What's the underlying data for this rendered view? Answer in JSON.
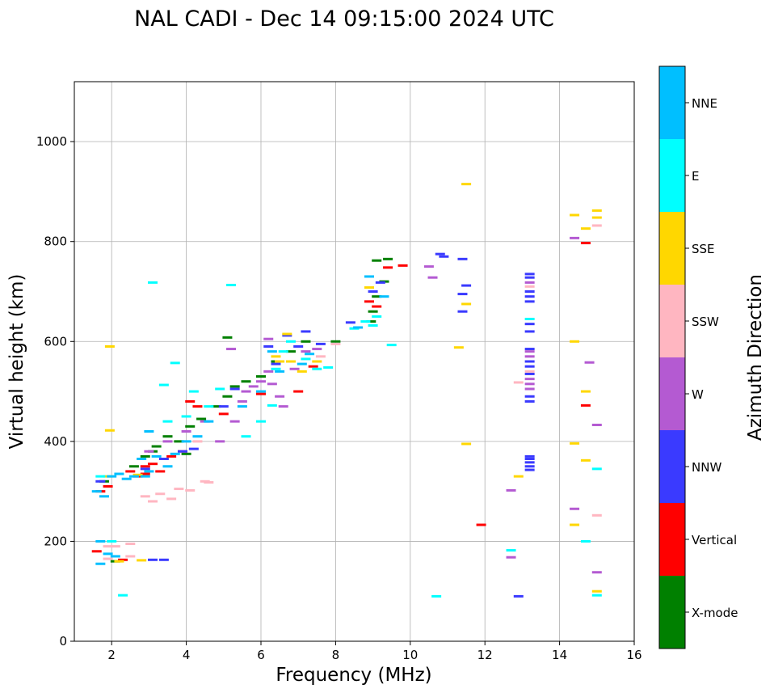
{
  "chart_data": {
    "type": "scatter",
    "title": "NAL CADI - Dec 14 09:15:00 2024 UTC",
    "xlabel": "Frequency (MHz)",
    "ylabel": "Virtual height (km)",
    "xlim": [
      1,
      16
    ],
    "ylim": [
      0,
      1120
    ],
    "xticks": [
      "2",
      "4",
      "6",
      "8",
      "10",
      "12",
      "14",
      "16"
    ],
    "yticks": [
      "0",
      "200",
      "400",
      "600",
      "800",
      "1000"
    ],
    "grid": true,
    "colorbar": {
      "label": "Azimuth Direction",
      "categories": [
        {
          "name": "X-mode",
          "color": "#008000"
        },
        {
          "name": "Vertical",
          "color": "#ff0000"
        },
        {
          "name": "NNW",
          "color": "#3a3aff"
        },
        {
          "name": "W",
          "color": "#b45ad2"
        },
        {
          "name": "SSW",
          "color": "#ffb6c1"
        },
        {
          "name": "SSE",
          "color": "#ffd700"
        },
        {
          "name": "E",
          "color": "#00ffff"
        },
        {
          "name": "NNE",
          "color": "#00bfff"
        }
      ]
    },
    "series": [
      {
        "name": "X-mode",
        "points": [
          [
            1.8,
            320
          ],
          [
            2.6,
            350
          ],
          [
            2.9,
            370
          ],
          [
            3.2,
            390
          ],
          [
            3.5,
            410
          ],
          [
            3.8,
            400
          ],
          [
            4.1,
            430
          ],
          [
            4.4,
            445
          ],
          [
            4.8,
            470
          ],
          [
            5.1,
            490
          ],
          [
            5.3,
            510
          ],
          [
            5.6,
            520
          ],
          [
            6.0,
            530
          ],
          [
            6.4,
            560
          ],
          [
            6.8,
            580
          ],
          [
            7.2,
            600
          ],
          [
            8.0,
            600
          ],
          [
            8.95,
            640
          ],
          [
            9.0,
            660
          ],
          [
            9.1,
            690
          ],
          [
            9.3,
            720
          ],
          [
            9.4,
            765
          ],
          [
            9.1,
            762
          ],
          [
            2.1,
            160
          ],
          [
            3.1,
            380
          ],
          [
            4.0,
            375
          ],
          [
            5.1,
            608
          ]
        ]
      },
      {
        "name": "Vertical",
        "points": [
          [
            1.7,
            300
          ],
          [
            1.9,
            310
          ],
          [
            2.5,
            340
          ],
          [
            2.7,
            330
          ],
          [
            2.9,
            350
          ],
          [
            3.1,
            355
          ],
          [
            3.3,
            340
          ],
          [
            3.6,
            370
          ],
          [
            3.9,
            380
          ],
          [
            4.1,
            480
          ],
          [
            4.3,
            470
          ],
          [
            5.0,
            455
          ],
          [
            6.0,
            495
          ],
          [
            7.0,
            500
          ],
          [
            7.4,
            550
          ],
          [
            8.9,
            680
          ],
          [
            9.1,
            670
          ],
          [
            9.4,
            748
          ],
          [
            9.8,
            752
          ],
          [
            11.9,
            233
          ],
          [
            14.7,
            472
          ],
          [
            14.7,
            797
          ],
          [
            2.3,
            163
          ],
          [
            1.6,
            180
          ],
          [
            2.9,
            335
          ]
        ]
      },
      {
        "name": "NNW",
        "points": [
          [
            1.7,
            320
          ],
          [
            2.9,
            345
          ],
          [
            3.4,
            365
          ],
          [
            3.9,
            380
          ],
          [
            4.2,
            385
          ],
          [
            5.0,
            470
          ],
          [
            5.3,
            505
          ],
          [
            6.2,
            590
          ],
          [
            6.4,
            555
          ],
          [
            7.0,
            590
          ],
          [
            7.6,
            595
          ],
          [
            8.4,
            638
          ],
          [
            9.0,
            700
          ],
          [
            9.2,
            718
          ],
          [
            10.8,
            775
          ],
          [
            10.9,
            770
          ],
          [
            11.4,
            695
          ],
          [
            11.4,
            765
          ],
          [
            11.5,
            712
          ],
          [
            11.4,
            660
          ],
          [
            13.2,
            735
          ],
          [
            13.2,
            728
          ],
          [
            13.2,
            700
          ],
          [
            13.2,
            690
          ],
          [
            13.2,
            680
          ],
          [
            13.2,
            635
          ],
          [
            13.2,
            620
          ],
          [
            13.2,
            585
          ],
          [
            13.2,
            560
          ],
          [
            13.2,
            550
          ],
          [
            13.2,
            535
          ],
          [
            13.2,
            490
          ],
          [
            13.2,
            480
          ],
          [
            13.2,
            370
          ],
          [
            13.2,
            365
          ],
          [
            13.2,
            358
          ],
          [
            13.2,
            350
          ],
          [
            13.2,
            343
          ],
          [
            12.9,
            90
          ],
          [
            3.1,
            163
          ],
          [
            3.4,
            163
          ],
          [
            7.2,
            620
          ],
          [
            6.7,
            612
          ]
        ]
      },
      {
        "name": "W",
        "points": [
          [
            3.0,
            380
          ],
          [
            3.5,
            400
          ],
          [
            4.0,
            420
          ],
          [
            4.5,
            440
          ],
          [
            4.9,
            400
          ],
          [
            5.3,
            440
          ],
          [
            5.5,
            480
          ],
          [
            5.6,
            500
          ],
          [
            5.8,
            510
          ],
          [
            6.0,
            520
          ],
          [
            6.2,
            540
          ],
          [
            6.3,
            515
          ],
          [
            6.2,
            605
          ],
          [
            6.5,
            490
          ],
          [
            6.6,
            470
          ],
          [
            6.9,
            545
          ],
          [
            7.2,
            580
          ],
          [
            7.5,
            585
          ],
          [
            10.5,
            750
          ],
          [
            10.6,
            728
          ],
          [
            12.7,
            302
          ],
          [
            12.7,
            168
          ],
          [
            13.2,
            718
          ],
          [
            13.2,
            580
          ],
          [
            13.2,
            570
          ],
          [
            13.2,
            525
          ],
          [
            13.2,
            515
          ],
          [
            13.2,
            505
          ],
          [
            14.4,
            265
          ],
          [
            14.4,
            807
          ],
          [
            14.8,
            558
          ],
          [
            15.0,
            433
          ],
          [
            15.0,
            138
          ],
          [
            5.2,
            585
          ]
        ]
      },
      {
        "name": "SSW",
        "points": [
          [
            1.9,
            190
          ],
          [
            2.1,
            190
          ],
          [
            2.5,
            195
          ],
          [
            2.9,
            290
          ],
          [
            3.1,
            280
          ],
          [
            3.3,
            295
          ],
          [
            3.6,
            285
          ],
          [
            3.8,
            305
          ],
          [
            4.1,
            302
          ],
          [
            4.5,
            320
          ],
          [
            4.6,
            318
          ],
          [
            2.5,
            170
          ],
          [
            7.6,
            570
          ],
          [
            8.0,
            595
          ],
          [
            12.9,
            518
          ],
          [
            13.2,
            710
          ],
          [
            13.2,
            540
          ],
          [
            15.0,
            252
          ],
          [
            15.0,
            832
          ],
          [
            4.3,
            400
          ],
          [
            1.9,
            165
          ]
        ]
      },
      {
        "name": "SSE",
        "points": [
          [
            1.95,
            590
          ],
          [
            1.95,
            422
          ],
          [
            1.9,
            330
          ],
          [
            2.7,
            333
          ],
          [
            6.4,
            570
          ],
          [
            6.5,
            560
          ],
          [
            6.7,
            615
          ],
          [
            6.8,
            560
          ],
          [
            7.1,
            540
          ],
          [
            7.5,
            560
          ],
          [
            8.9,
            708
          ],
          [
            11.3,
            588
          ],
          [
            11.5,
            395
          ],
          [
            11.5,
            675
          ],
          [
            11.5,
            915
          ],
          [
            12.9,
            330
          ],
          [
            14.4,
            600
          ],
          [
            14.4,
            396
          ],
          [
            14.4,
            233
          ],
          [
            14.4,
            853
          ],
          [
            14.7,
            826
          ],
          [
            14.7,
            500
          ],
          [
            14.7,
            362
          ],
          [
            15.0,
            862
          ],
          [
            15.0,
            848
          ],
          [
            15.0,
            100
          ],
          [
            2.2,
            160
          ],
          [
            2.8,
            162
          ]
        ]
      },
      {
        "name": "E",
        "points": [
          [
            1.7,
            330
          ],
          [
            2.3,
            92
          ],
          [
            3.1,
            718
          ],
          [
            3.4,
            513
          ],
          [
            3.7,
            557
          ],
          [
            4.0,
            450
          ],
          [
            4.2,
            500
          ],
          [
            4.6,
            470
          ],
          [
            4.9,
            505
          ],
          [
            5.2,
            713
          ],
          [
            5.6,
            410
          ],
          [
            6.0,
            440
          ],
          [
            6.4,
            545
          ],
          [
            6.6,
            580
          ],
          [
            6.8,
            600
          ],
          [
            7.2,
            565
          ],
          [
            7.5,
            545
          ],
          [
            7.8,
            548
          ],
          [
            8.5,
            626
          ],
          [
            8.8,
            640
          ],
          [
            9.0,
            632
          ],
          [
            9.1,
            650
          ],
          [
            9.5,
            593
          ],
          [
            10.7,
            90
          ],
          [
            12.7,
            182
          ],
          [
            13.2,
            645
          ],
          [
            14.7,
            200
          ],
          [
            15.0,
            345
          ],
          [
            15.0,
            92
          ],
          [
            2.0,
            200
          ],
          [
            3.5,
            440
          ],
          [
            6.3,
            472
          ]
        ]
      },
      {
        "name": "NNE",
        "points": [
          [
            1.6,
            300
          ],
          [
            1.8,
            290
          ],
          [
            2.0,
            330
          ],
          [
            2.2,
            335
          ],
          [
            2.4,
            325
          ],
          [
            2.6,
            330
          ],
          [
            2.8,
            365
          ],
          [
            3.0,
            340
          ],
          [
            3.2,
            370
          ],
          [
            3.5,
            350
          ],
          [
            3.7,
            375
          ],
          [
            4.0,
            400
          ],
          [
            4.3,
            410
          ],
          [
            4.6,
            440
          ],
          [
            5.5,
            470
          ],
          [
            6.0,
            500
          ],
          [
            6.3,
            580
          ],
          [
            6.5,
            540
          ],
          [
            7.1,
            555
          ],
          [
            7.3,
            575
          ],
          [
            8.6,
            628
          ],
          [
            8.9,
            730
          ],
          [
            9.3,
            690
          ],
          [
            1.9,
            175
          ],
          [
            2.1,
            170
          ],
          [
            1.7,
            200
          ],
          [
            3.0,
            420
          ],
          [
            2.9,
            330
          ],
          [
            1.7,
            155
          ]
        ]
      }
    ]
  }
}
